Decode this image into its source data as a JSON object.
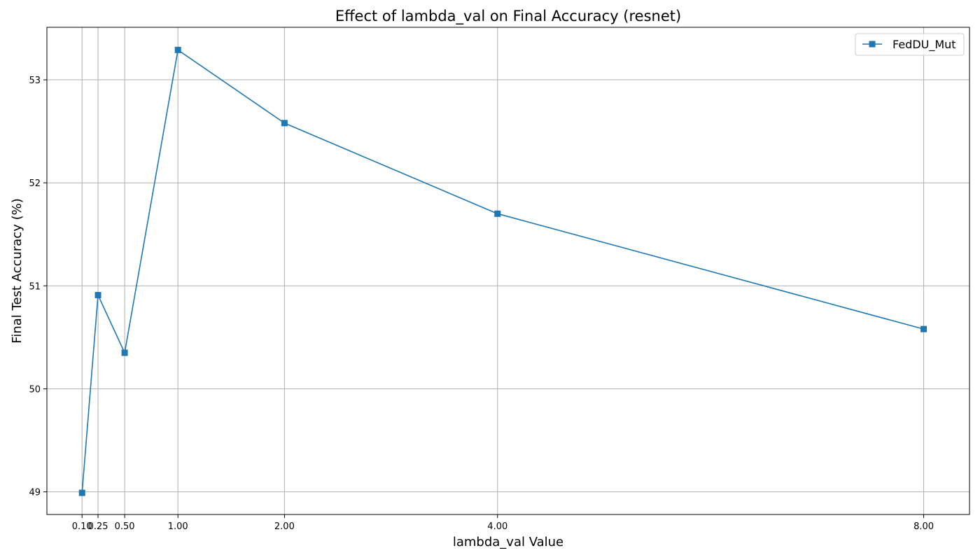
{
  "chart_data": {
    "type": "line",
    "title": "Effect of lambda_val on Final Accuracy (resnet)",
    "xlabel": "lambda_val Value",
    "ylabel": "Final Test Accuracy (%)",
    "xlim": [
      -0.23,
      8.43
    ],
    "ylim": [
      48.78,
      53.51
    ],
    "x_ticks": [
      0.1,
      0.25,
      0.5,
      1.0,
      2.0,
      4.0,
      8.0
    ],
    "x_tick_labels": [
      "0.10",
      "0.25",
      "0.50",
      "1.00",
      "2.00",
      "4.00",
      "8.00"
    ],
    "y_ticks": [
      49,
      50,
      51,
      52,
      53
    ],
    "y_tick_labels": [
      "49",
      "50",
      "51",
      "52",
      "53"
    ],
    "grid": true,
    "legend_position": "top-right",
    "series": [
      {
        "name": "FedDU_Mut",
        "color": "#1f77b4",
        "marker": "square",
        "x": [
          0.1,
          0.25,
          0.5,
          1.0,
          2.0,
          4.0,
          8.0
        ],
        "y": [
          48.99,
          50.91,
          50.35,
          53.29,
          52.58,
          51.7,
          50.58
        ]
      }
    ]
  }
}
